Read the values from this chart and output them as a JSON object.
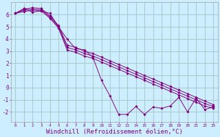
{
  "background_color": "#cceeff",
  "grid_color": "#aacccc",
  "line_color": "#800080",
  "marker_color": "#800080",
  "xlabel": "Windchill (Refroidissement éolien,°C)",
  "xlabel_fontsize": 6.5,
  "ylabel_ticks": [
    -2,
    -1,
    0,
    1,
    2,
    3,
    4,
    5,
    6
  ],
  "xtick_labels": [
    "0",
    "1",
    "2",
    "3",
    "4",
    "5",
    "6",
    "7",
    "8",
    "9",
    "10",
    "11",
    "12",
    "13",
    "14",
    "15",
    "16",
    "17",
    "18",
    "19",
    "20",
    "21",
    "22",
    "23"
  ],
  "xlim": [
    -0.5,
    23.5
  ],
  "ylim": [
    -2.8,
    7.0
  ],
  "lines": [
    [
      6.1,
      6.5,
      6.2,
      6.3,
      6.1,
      5.0,
      4.0,
      3.2,
      3.1,
      2.5,
      0.6,
      -0.7,
      -2.2,
      -2.2,
      -1.55,
      -2.2,
      -1.6,
      -1.7,
      -1.5,
      -0.8,
      -2.0,
      -0.85,
      -1.8,
      -1.6
    ],
    [
      6.1,
      6.45,
      6.55,
      6.5,
      5.9,
      5.1,
      3.5,
      3.3,
      3.0,
      2.8,
      2.5,
      2.2,
      1.9,
      1.6,
      1.3,
      1.0,
      0.7,
      0.4,
      0.1,
      -0.2,
      -0.5,
      -0.8,
      -1.1,
      -1.4
    ],
    [
      6.1,
      6.35,
      6.45,
      6.4,
      5.8,
      5.0,
      3.3,
      3.1,
      2.8,
      2.6,
      2.3,
      2.0,
      1.7,
      1.4,
      1.1,
      0.8,
      0.5,
      0.2,
      -0.1,
      -0.4,
      -0.7,
      -1.0,
      -1.3,
      -1.55
    ],
    [
      6.1,
      6.25,
      6.35,
      6.3,
      5.7,
      4.9,
      3.1,
      2.9,
      2.6,
      2.4,
      2.1,
      1.8,
      1.5,
      1.2,
      0.9,
      0.6,
      0.3,
      0.0,
      -0.3,
      -0.6,
      -0.9,
      -1.2,
      -1.5,
      -1.7
    ]
  ]
}
